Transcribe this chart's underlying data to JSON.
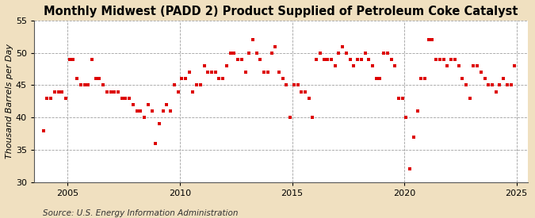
{
  "title": "Monthly Midwest (PADD 2) Product Supplied of Petroleum Coke Catalyst",
  "ylabel": "Thousand Barrels per Day",
  "source": "Source: U.S. Energy Information Administration",
  "background_color": "#f0e0c0",
  "plot_background_color": "#ffffff",
  "marker_color": "#dd0000",
  "marker": "s",
  "marker_size": 3.5,
  "xlim_left": 2003.5,
  "xlim_right": 2025.5,
  "ylim_bottom": 30,
  "ylim_top": 55,
  "yticks": [
    30,
    35,
    40,
    45,
    50,
    55
  ],
  "xticks": [
    2005,
    2010,
    2015,
    2020,
    2025
  ],
  "grid_color": "#a0a0a0",
  "title_fontsize": 10.5,
  "label_fontsize": 8,
  "tick_fontsize": 8,
  "source_fontsize": 7.5,
  "dates": [
    2003.917,
    2004.083,
    2004.25,
    2004.417,
    2004.583,
    2004.75,
    2004.917,
    2005.083,
    2005.25,
    2005.417,
    2005.583,
    2005.75,
    2005.917,
    2006.083,
    2006.25,
    2006.417,
    2006.583,
    2006.75,
    2006.917,
    2007.083,
    2007.25,
    2007.417,
    2007.583,
    2007.75,
    2007.917,
    2008.083,
    2008.25,
    2008.417,
    2008.583,
    2008.75,
    2008.917,
    2009.083,
    2009.25,
    2009.417,
    2009.583,
    2009.75,
    2009.917,
    2010.083,
    2010.25,
    2010.417,
    2010.583,
    2010.75,
    2010.917,
    2011.083,
    2011.25,
    2011.417,
    2011.583,
    2011.75,
    2011.917,
    2012.083,
    2012.25,
    2012.417,
    2012.583,
    2012.75,
    2012.917,
    2013.083,
    2013.25,
    2013.417,
    2013.583,
    2013.75,
    2013.917,
    2014.083,
    2014.25,
    2014.417,
    2014.583,
    2014.75,
    2014.917,
    2015.083,
    2015.25,
    2015.417,
    2015.583,
    2015.75,
    2015.917,
    2016.083,
    2016.25,
    2016.417,
    2016.583,
    2016.75,
    2016.917,
    2017.083,
    2017.25,
    2017.417,
    2017.583,
    2017.75,
    2017.917,
    2018.083,
    2018.25,
    2018.417,
    2018.583,
    2018.75,
    2018.917,
    2019.083,
    2019.25,
    2019.417,
    2019.583,
    2019.75,
    2019.917,
    2020.083,
    2020.25,
    2020.417,
    2020.583,
    2020.75,
    2020.917,
    2021.083,
    2021.25,
    2021.417,
    2021.583,
    2021.75,
    2021.917,
    2022.083,
    2022.25,
    2022.417,
    2022.583,
    2022.75,
    2022.917,
    2023.083,
    2023.25,
    2023.417,
    2023.583,
    2023.75,
    2023.917,
    2024.083,
    2024.25,
    2024.417,
    2024.583,
    2024.75,
    2024.917
  ],
  "values": [
    38,
    43,
    43,
    44,
    44,
    44,
    43,
    49,
    49,
    46,
    45,
    45,
    45,
    49,
    46,
    46,
    45,
    44,
    44,
    44,
    44,
    43,
    43,
    43,
    42,
    41,
    41,
    40,
    42,
    41,
    36,
    39,
    41,
    42,
    41,
    45,
    44,
    46,
    46,
    47,
    44,
    45,
    45,
    48,
    47,
    47,
    47,
    46,
    46,
    48,
    50,
    50,
    49,
    49,
    47,
    50,
    52,
    50,
    49,
    47,
    47,
    50,
    51,
    47,
    46,
    45,
    40,
    45,
    45,
    44,
    44,
    43,
    40,
    49,
    50,
    49,
    49,
    49,
    48,
    50,
    51,
    50,
    49,
    48,
    49,
    49,
    50,
    49,
    48,
    46,
    46,
    50,
    50,
    49,
    48,
    43,
    43,
    40,
    32,
    37,
    41,
    46,
    46,
    52,
    52,
    49,
    49,
    49,
    48,
    49,
    49,
    48,
    46,
    45,
    43,
    48,
    48,
    47,
    46,
    45,
    45,
    44,
    45,
    46,
    45,
    45,
    48
  ]
}
